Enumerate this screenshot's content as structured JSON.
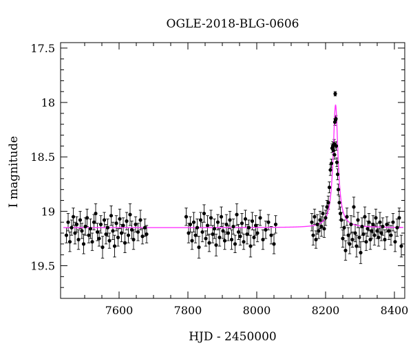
{
  "chart_data": {
    "type": "scatter",
    "title": "OGLE-2018-BLG-0606",
    "xlabel": "HJD - 2450000",
    "ylabel": "I magnitude",
    "xlim": [
      7430,
      8430
    ],
    "ylim": [
      17.45,
      19.8
    ],
    "y_inverted": true,
    "x_ticks": [
      7600,
      7800,
      8000,
      8200,
      8400
    ],
    "x_tick_labels": [
      "7600",
      "7800",
      "8000",
      "8200",
      "8400"
    ],
    "y_ticks": [
      17.5,
      18,
      18.5,
      19,
      19.5
    ],
    "y_tick_labels": [
      "17.5",
      "18",
      "18.5",
      "19",
      "19.5"
    ],
    "grid": false,
    "colors": {
      "data": "#000000",
      "model": "#ff33ff"
    },
    "series": [
      {
        "kind": "model",
        "model": {
          "baseline": 19.15,
          "t0": 8229,
          "peak": 18.02,
          "tE": 8.5
        }
      },
      {
        "kind": "observations",
        "points": [
          [
            7447,
            19.22,
            0.07
          ],
          [
            7452,
            19.1,
            0.08
          ],
          [
            7457,
            19.28,
            0.09
          ],
          [
            7462,
            19.15,
            0.07
          ],
          [
            7467,
            19.05,
            0.08
          ],
          [
            7472,
            19.2,
            0.1
          ],
          [
            7477,
            19.12,
            0.07
          ],
          [
            7482,
            19.26,
            0.09
          ],
          [
            7487,
            19.08,
            0.08
          ],
          [
            7492,
            19.18,
            0.07
          ],
          [
            7497,
            19.3,
            0.09
          ],
          [
            7502,
            19.14,
            0.08
          ],
          [
            7507,
            19.06,
            0.08
          ],
          [
            7512,
            19.22,
            0.07
          ],
          [
            7517,
            19.16,
            0.09
          ],
          [
            7522,
            19.28,
            0.08
          ],
          [
            7527,
            19.1,
            0.07
          ],
          [
            7532,
            19.02,
            0.09
          ],
          [
            7537,
            19.19,
            0.08
          ],
          [
            7542,
            19.25,
            0.07
          ],
          [
            7547,
            19.12,
            0.08
          ],
          [
            7552,
            19.33,
            0.1
          ],
          [
            7557,
            19.08,
            0.07
          ],
          [
            7562,
            19.21,
            0.09
          ],
          [
            7567,
            19.15,
            0.08
          ],
          [
            7572,
            19.27,
            0.07
          ],
          [
            7577,
            19.04,
            0.09
          ],
          [
            7582,
            19.18,
            0.08
          ],
          [
            7587,
            19.32,
            0.1
          ],
          [
            7592,
            19.11,
            0.07
          ],
          [
            7597,
            19.24,
            0.08
          ],
          [
            7602,
            19.07,
            0.09
          ],
          [
            7607,
            19.2,
            0.08
          ],
          [
            7612,
            19.13,
            0.07
          ],
          [
            7617,
            19.29,
            0.09
          ],
          [
            7622,
            19.09,
            0.08
          ],
          [
            7627,
            19.22,
            0.07
          ],
          [
            7632,
            19.03,
            0.1
          ],
          [
            7637,
            19.17,
            0.08
          ],
          [
            7642,
            19.26,
            0.09
          ],
          [
            7648,
            19.12,
            0.07
          ],
          [
            7655,
            19.19,
            0.08
          ],
          [
            7662,
            19.08,
            0.09
          ],
          [
            7668,
            19.23,
            0.07
          ],
          [
            7675,
            19.15,
            0.08
          ],
          [
            7680,
            19.21,
            0.08
          ],
          [
            7795,
            19.05,
            0.08
          ],
          [
            7802,
            19.2,
            0.09
          ],
          [
            7807,
            19.12,
            0.07
          ],
          [
            7812,
            19.27,
            0.08
          ],
          [
            7817,
            19.1,
            0.09
          ],
          [
            7822,
            19.22,
            0.07
          ],
          [
            7827,
            19.15,
            0.08
          ],
          [
            7832,
            19.33,
            0.1
          ],
          [
            7837,
            19.08,
            0.07
          ],
          [
            7842,
            19.19,
            0.09
          ],
          [
            7847,
            19.02,
            0.08
          ],
          [
            7852,
            19.25,
            0.07
          ],
          [
            7857,
            19.13,
            0.09
          ],
          [
            7862,
            19.29,
            0.08
          ],
          [
            7867,
            19.06,
            0.07
          ],
          [
            7872,
            19.21,
            0.08
          ],
          [
            7877,
            19.16,
            0.09
          ],
          [
            7882,
            19.31,
            0.1
          ],
          [
            7887,
            19.1,
            0.07
          ],
          [
            7892,
            19.24,
            0.08
          ],
          [
            7897,
            19.05,
            0.09
          ],
          [
            7902,
            19.18,
            0.07
          ],
          [
            7907,
            19.27,
            0.08
          ],
          [
            7912,
            19.12,
            0.09
          ],
          [
            7917,
            19.2,
            0.07
          ],
          [
            7922,
            19.08,
            0.08
          ],
          [
            7927,
            19.26,
            0.09
          ],
          [
            7932,
            19.14,
            0.07
          ],
          [
            7937,
            19.3,
            0.08
          ],
          [
            7942,
            19.03,
            0.1
          ],
          [
            7947,
            19.19,
            0.07
          ],
          [
            7952,
            19.23,
            0.08
          ],
          [
            7957,
            19.11,
            0.09
          ],
          [
            7962,
            19.28,
            0.07
          ],
          [
            7967,
            19.07,
            0.08
          ],
          [
            7972,
            19.21,
            0.09
          ],
          [
            7977,
            19.15,
            0.07
          ],
          [
            7982,
            19.32,
            0.1
          ],
          [
            7987,
            19.09,
            0.08
          ],
          [
            7992,
            19.24,
            0.07
          ],
          [
            7997,
            19.13,
            0.09
          ],
          [
            8002,
            19.2,
            0.08
          ],
          [
            8010,
            19.06,
            0.07
          ],
          [
            8018,
            19.26,
            0.09
          ],
          [
            8026,
            19.17,
            0.08
          ],
          [
            8034,
            19.1,
            0.07
          ],
          [
            8042,
            19.22,
            0.08
          ],
          [
            8050,
            19.3,
            0.09
          ],
          [
            8055,
            19.12,
            0.08
          ],
          [
            8160,
            19.1,
            0.08
          ],
          [
            8164,
            19.22,
            0.09
          ],
          [
            8168,
            19.05,
            0.07
          ],
          [
            8172,
            19.26,
            0.08
          ],
          [
            8176,
            19.12,
            0.09
          ],
          [
            8180,
            19.18,
            0.07
          ],
          [
            8184,
            19.08,
            0.08
          ],
          [
            8188,
            19.14,
            0.09
          ],
          [
            8192,
            19.02,
            0.07
          ],
          [
            8196,
            19.16,
            0.08
          ],
          [
            8200,
            19.06,
            0.07
          ],
          [
            8204,
            18.96,
            0.06
          ],
          [
            8208,
            18.92,
            0.06
          ],
          [
            8211,
            18.78,
            0.05
          ],
          [
            8214,
            18.62,
            0.05
          ],
          [
            8217,
            18.56,
            0.04
          ],
          [
            8219,
            18.42,
            0.04
          ],
          [
            8221,
            18.4,
            0.04
          ],
          [
            8223,
            18.44,
            0.04
          ],
          [
            8225,
            18.38,
            0.04
          ],
          [
            8226,
            18.48,
            0.04
          ],
          [
            8227,
            18.18,
            0.03
          ],
          [
            8228,
            17.92,
            0.02
          ],
          [
            8229,
            18.16,
            0.03
          ],
          [
            8230,
            18.15,
            0.03
          ],
          [
            8231,
            18.4,
            0.04
          ],
          [
            8233,
            18.55,
            0.04
          ],
          [
            8235,
            18.66,
            0.05
          ],
          [
            8237,
            18.8,
            0.05
          ],
          [
            8240,
            18.92,
            0.06
          ],
          [
            8243,
            19.02,
            0.06
          ],
          [
            8246,
            19.08,
            0.07
          ],
          [
            8250,
            19.25,
            0.08
          ],
          [
            8254,
            19.15,
            0.07
          ],
          [
            8258,
            19.36,
            0.09
          ],
          [
            8262,
            19.05,
            0.08
          ],
          [
            8266,
            19.22,
            0.07
          ],
          [
            8270,
            19.3,
            0.09
          ],
          [
            8274,
            19.12,
            0.08
          ],
          [
            8278,
            19.26,
            0.07
          ],
          [
            8282,
            18.96,
            0.09
          ],
          [
            8286,
            19.2,
            0.08
          ],
          [
            8290,
            19.32,
            0.1
          ],
          [
            8294,
            19.08,
            0.07
          ],
          [
            8298,
            19.24,
            0.09
          ],
          [
            8302,
            19.38,
            0.1
          ],
          [
            8306,
            19.14,
            0.08
          ],
          [
            8310,
            19.21,
            0.07
          ],
          [
            8314,
            19.05,
            0.09
          ],
          [
            8318,
            19.28,
            0.08
          ],
          [
            8322,
            19.16,
            0.07
          ],
          [
            8326,
            19.1,
            0.08
          ],
          [
            8330,
            19.26,
            0.09
          ],
          [
            8334,
            19.18,
            0.07
          ],
          [
            8338,
            19.12,
            0.08
          ],
          [
            8342,
            19.22,
            0.09
          ],
          [
            8346,
            19.06,
            0.08
          ],
          [
            8350,
            19.18,
            0.07
          ],
          [
            8354,
            19.24,
            0.08
          ],
          [
            8358,
            19.1,
            0.09
          ],
          [
            8362,
            19.2,
            0.07
          ],
          [
            8366,
            19.14,
            0.08
          ],
          [
            8372,
            19.26,
            0.09
          ],
          [
            8378,
            19.12,
            0.07
          ],
          [
            8384,
            19.18,
            0.08
          ],
          [
            8390,
            19.22,
            0.09
          ],
          [
            8396,
            19.1,
            0.08
          ],
          [
            8402,
            19.28,
            0.09
          ],
          [
            8408,
            19.15,
            0.08
          ],
          [
            8414,
            19.06,
            0.09
          ],
          [
            8420,
            19.32,
            0.1
          ]
        ]
      }
    ]
  }
}
